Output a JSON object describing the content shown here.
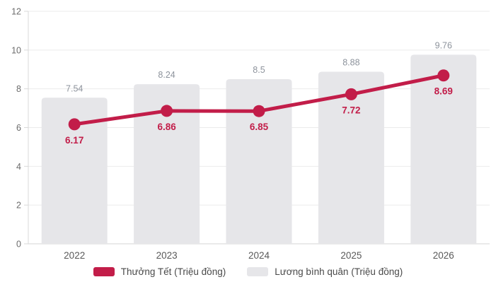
{
  "chart": {
    "colors": {
      "line": "#c21d49",
      "bar": "#e6e6e9",
      "grid": "#ebebeb",
      "axis_line": "#d9d9d9",
      "baseline": "#d6d6d6",
      "bar_label": "#8d939c",
      "line_label": "#c21d49",
      "y_tick_label": "#6b6b6b",
      "x_tick_label": "#595959",
      "legend_text": "#4a4a4a",
      "background": "#ffffff"
    }
  },
  "chart_data": {
    "type": "combo",
    "title": "",
    "xlabel": "",
    "ylabel": "",
    "categories": [
      "2022",
      "2023",
      "2024",
      "2025",
      "2026"
    ],
    "series": [
      {
        "name": "Thưởng Tết (Triệu đồng)",
        "type": "line",
        "color": "#c21d49",
        "values": [
          6.17,
          6.86,
          6.85,
          7.72,
          8.69
        ],
        "labels": [
          "6.17",
          "6.86",
          "6.85",
          "7.72",
          "8.69"
        ]
      },
      {
        "name": "Lương bình quân (Triệu đồng)",
        "type": "bar",
        "color": "#e6e6e9",
        "values": [
          7.54,
          8.24,
          8.5,
          8.88,
          9.76
        ],
        "labels": [
          "7.54",
          "8.24",
          "8.5",
          "8.88",
          "9.76"
        ]
      }
    ],
    "ylim": [
      0,
      12
    ],
    "yticks": [
      0,
      2,
      4,
      6,
      8,
      10,
      12
    ],
    "grid": true,
    "legend_position": "bottom"
  }
}
